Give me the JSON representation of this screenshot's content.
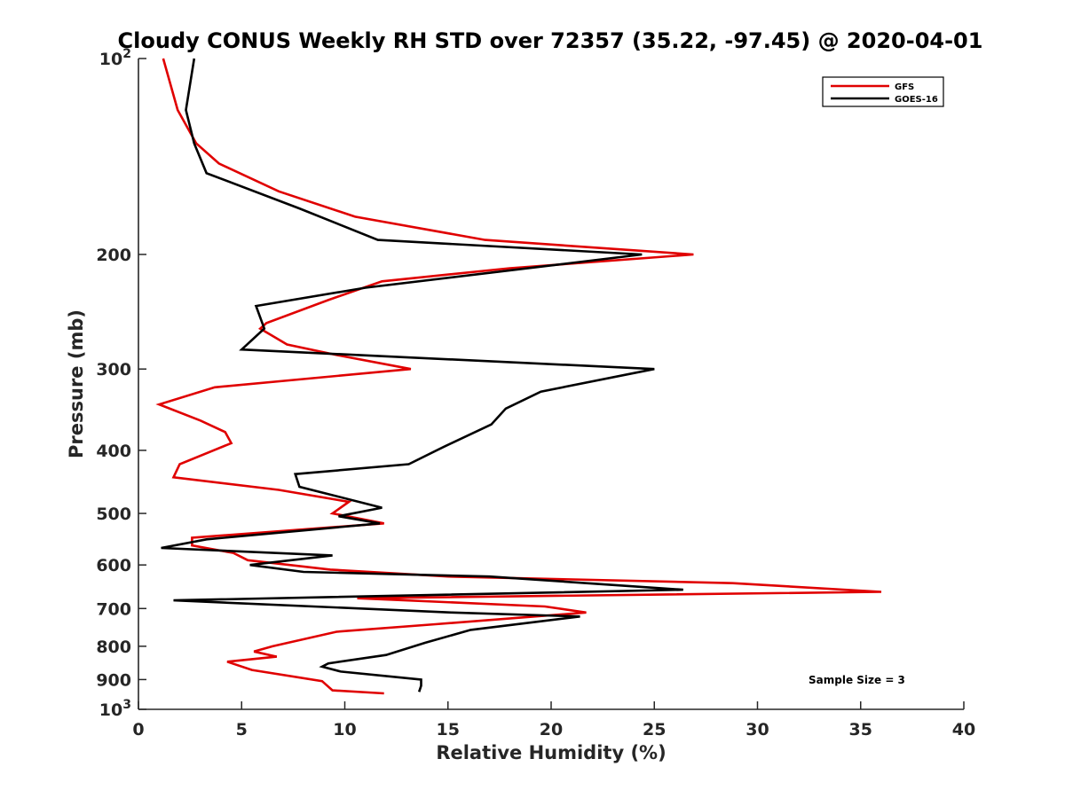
{
  "chart_data": {
    "type": "line",
    "title": "Cloudy CONUS Weekly RH STD over 72357 (35.22, -97.45) @ 2020-04-01",
    "xlabel": "Relative Humidity (%)",
    "ylabel": "Pressure (mb)",
    "xlim": [
      0,
      40
    ],
    "ylim": [
      100,
      1000
    ],
    "y_scale": "log",
    "y_reversed": true,
    "x_ticks": [
      "0",
      "5",
      "10",
      "15",
      "20",
      "25",
      "30",
      "35",
      "40"
    ],
    "y_ticks": [
      {
        "value": 100,
        "label": "10",
        "sup": "2"
      },
      {
        "value": 200,
        "label": "200",
        "sup": ""
      },
      {
        "value": 300,
        "label": "300",
        "sup": ""
      },
      {
        "value": 400,
        "label": "400",
        "sup": ""
      },
      {
        "value": 500,
        "label": "500",
        "sup": ""
      },
      {
        "value": 600,
        "label": "600",
        "sup": ""
      },
      {
        "value": 700,
        "label": "700",
        "sup": ""
      },
      {
        "value": 800,
        "label": "800",
        "sup": ""
      },
      {
        "value": 900,
        "label": "900",
        "sup": ""
      },
      {
        "value": 1000,
        "label": "10",
        "sup": "3"
      }
    ],
    "grid": false,
    "legend_position": "top-right",
    "annotation": "Sample Size = 3",
    "series": [
      {
        "name": "GFS",
        "color": "#e00000",
        "points": [
          [
            1.2,
            100
          ],
          [
            1.9,
            120
          ],
          [
            2.8,
            135
          ],
          [
            3.9,
            145
          ],
          [
            6.8,
            160
          ],
          [
            10.5,
            175
          ],
          [
            16.8,
            190
          ],
          [
            26.9,
            200
          ],
          [
            18.0,
            210
          ],
          [
            11.8,
            220
          ],
          [
            9.2,
            235
          ],
          [
            6.2,
            255
          ],
          [
            5.9,
            260
          ],
          [
            7.2,
            275
          ],
          [
            9.5,
            285
          ],
          [
            13.2,
            300
          ],
          [
            3.7,
            320
          ],
          [
            1.0,
            340
          ],
          [
            3.0,
            360
          ],
          [
            4.2,
            375
          ],
          [
            4.5,
            390
          ],
          [
            2.0,
            420
          ],
          [
            1.7,
            440
          ],
          [
            6.8,
            460
          ],
          [
            10.2,
            480
          ],
          [
            9.4,
            500
          ],
          [
            11.9,
            518
          ],
          [
            2.6,
            545
          ],
          [
            2.6,
            560
          ],
          [
            4.6,
            575
          ],
          [
            5.3,
            590
          ],
          [
            9.3,
            610
          ],
          [
            15.0,
            625
          ],
          [
            28.8,
            640
          ],
          [
            36.0,
            660
          ],
          [
            10.6,
            675
          ],
          [
            19.7,
            695
          ],
          [
            21.7,
            710
          ],
          [
            14.4,
            740
          ],
          [
            9.6,
            760
          ],
          [
            6.5,
            800
          ],
          [
            5.6,
            815
          ],
          [
            6.7,
            830
          ],
          [
            4.3,
            845
          ],
          [
            5.5,
            870
          ],
          [
            8.9,
            905
          ],
          [
            9.4,
            935
          ],
          [
            11.9,
            945
          ]
        ]
      },
      {
        "name": "GOES-16",
        "color": "#000000",
        "points": [
          [
            2.7,
            100
          ],
          [
            2.3,
            120
          ],
          [
            2.7,
            135
          ],
          [
            3.3,
            150
          ],
          [
            7.8,
            170
          ],
          [
            11.6,
            190
          ],
          [
            24.4,
            200
          ],
          [
            11.0,
            225
          ],
          [
            5.7,
            240
          ],
          [
            6.1,
            260
          ],
          [
            5.0,
            280
          ],
          [
            25.0,
            300
          ],
          [
            19.5,
            325
          ],
          [
            17.8,
            345
          ],
          [
            17.1,
            365
          ],
          [
            14.8,
            395
          ],
          [
            13.1,
            420
          ],
          [
            7.6,
            435
          ],
          [
            7.8,
            455
          ],
          [
            11.8,
            490
          ],
          [
            9.7,
            505
          ],
          [
            11.7,
            518
          ],
          [
            3.3,
            548
          ],
          [
            1.1,
            565
          ],
          [
            9.4,
            580
          ],
          [
            5.4,
            600
          ],
          [
            8.0,
            615
          ],
          [
            17.0,
            625
          ],
          [
            26.4,
            655
          ],
          [
            1.7,
            680
          ],
          [
            15.2,
            710
          ],
          [
            21.4,
            720
          ],
          [
            16.1,
            755
          ],
          [
            13.9,
            790
          ],
          [
            12.0,
            825
          ],
          [
            9.2,
            850
          ],
          [
            8.9,
            860
          ],
          [
            9.8,
            875
          ],
          [
            13.7,
            900
          ],
          [
            13.7,
            920
          ],
          [
            13.6,
            940
          ]
        ]
      }
    ]
  }
}
